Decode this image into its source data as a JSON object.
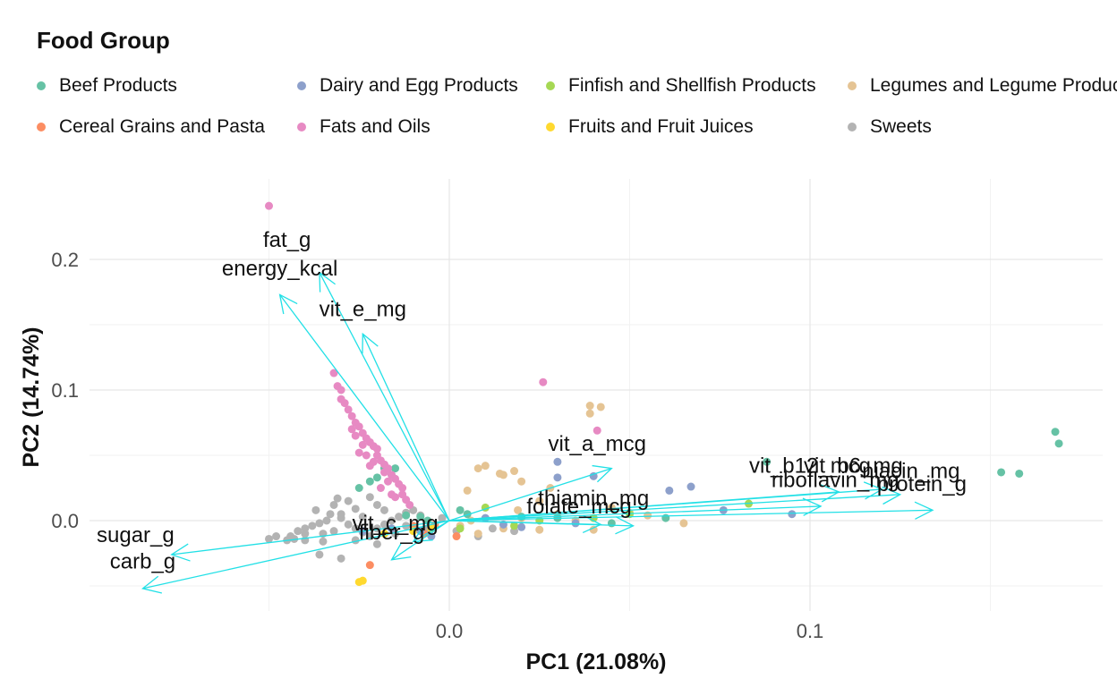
{
  "chart_data": {
    "type": "scatter",
    "subtype": "pca-biplot",
    "legend": {
      "title": "Food Group",
      "placement": "top",
      "entries": [
        {
          "name": "Beef Products",
          "color": "#66c2a5"
        },
        {
          "name": "Dairy and Egg Products",
          "color": "#8da0cb"
        },
        {
          "name": "Finfish and Shellfish Products",
          "color": "#a6d854"
        },
        {
          "name": "Legumes and Legume Products",
          "color": "#e5c494"
        },
        {
          "name": "Cereal Grains and Pasta",
          "color": "#fc8d62"
        },
        {
          "name": "Fats and Oils",
          "color": "#e78ac3"
        },
        {
          "name": "Fruits and Fruit Juices",
          "color": "#ffd92f"
        },
        {
          "name": "Sweets",
          "color": "#b3b3b3"
        }
      ]
    },
    "xlabel": "PC1 (21.08%)",
    "ylabel": "PC2 (14.74%)",
    "xlim": [
      -0.1,
      0.18
    ],
    "ylim": [
      -0.068,
      0.25
    ],
    "xticks": [
      {
        "value": 0.0,
        "label": "0.0"
      },
      {
        "value": 0.1,
        "label": "0.1"
      }
    ],
    "yticks": [
      {
        "value": 0.0,
        "label": "0.0"
      },
      {
        "value": 0.1,
        "label": "0.1"
      },
      {
        "value": 0.2,
        "label": "0.2"
      }
    ],
    "grid": true,
    "arrow_color": "#22e0e6",
    "loadings": [
      {
        "name": "fat_g",
        "x": -0.036,
        "y": 0.19,
        "label_x": -0.045,
        "label_y": 0.215
      },
      {
        "name": "energy_kcal",
        "x": -0.047,
        "y": 0.173,
        "label_x": -0.047,
        "label_y": 0.193
      },
      {
        "name": "vit_e_mg",
        "x": -0.024,
        "y": 0.143,
        "label_x": -0.024,
        "label_y": 0.162
      },
      {
        "name": "vit_a_mcg",
        "x": 0.045,
        "y": 0.04,
        "label_x": 0.041,
        "label_y": 0.059
      },
      {
        "name": "vit_b12_mcg",
        "x": 0.108,
        "y": 0.022,
        "label_x": 0.1,
        "label_y": 0.042
      },
      {
        "name": "vit_b6_mg",
        "x": 0.12,
        "y": 0.024,
        "label_x": 0.112,
        "label_y": 0.042
      },
      {
        "name": "niacin_mg",
        "x": 0.125,
        "y": 0.02,
        "label_x": 0.128,
        "label_y": 0.038
      },
      {
        "name": "riboflavin_mg",
        "x": 0.103,
        "y": 0.011,
        "label_x": 0.107,
        "label_y": 0.031
      },
      {
        "name": "protein_g",
        "x": 0.134,
        "y": 0.008,
        "label_x": 0.131,
        "label_y": 0.028
      },
      {
        "name": "thiamin_mg",
        "x": 0.042,
        "y": -0.003,
        "label_x": 0.04,
        "label_y": 0.017
      },
      {
        "name": "folate_mcg",
        "x": 0.051,
        "y": -0.004,
        "label_x": 0.036,
        "label_y": 0.011
      },
      {
        "name": "vit_c_mg",
        "x": -0.01,
        "y": -0.016,
        "label_x": -0.015,
        "label_y": -0.002
      },
      {
        "name": "fiber_g",
        "x": -0.016,
        "y": -0.03,
        "label_x": -0.016,
        "label_y": -0.009
      },
      {
        "name": "sugar_g",
        "x": -0.077,
        "y": -0.026,
        "label_x": -0.087,
        "label_y": -0.011
      },
      {
        "name": "carb_g",
        "x": -0.085,
        "y": -0.052,
        "label_x": -0.085,
        "label_y": -0.031
      }
    ],
    "points": {
      "Beef Products": [
        [
          0.168,
          0.068
        ],
        [
          0.169,
          0.059
        ],
        [
          0.158,
          0.036
        ],
        [
          0.153,
          0.037
        ],
        [
          0.088,
          0.045
        ],
        [
          -0.008,
          0.003
        ],
        [
          -0.006,
          0.0
        ],
        [
          -0.016,
          0.035
        ],
        [
          -0.015,
          0.04
        ],
        [
          -0.018,
          0.04
        ],
        [
          -0.02,
          0.033
        ],
        [
          -0.022,
          0.03
        ],
        [
          -0.025,
          0.025
        ],
        [
          0.003,
          0.008
        ],
        [
          0.005,
          0.005
        ],
        [
          0.045,
          -0.002
        ],
        [
          0.03,
          0.002
        ],
        [
          0.06,
          0.002
        ],
        [
          0.02,
          0.003
        ],
        [
          -0.012,
          0.004
        ]
      ],
      "Dairy and Egg Products": [
        [
          0.061,
          0.023
        ],
        [
          0.067,
          0.026
        ],
        [
          0.04,
          0.034
        ],
        [
          0.03,
          0.045
        ],
        [
          0.03,
          0.033
        ],
        [
          0.076,
          0.008
        ],
        [
          0.095,
          0.005
        ],
        [
          0.02,
          -0.005
        ],
        [
          -0.005,
          -0.012
        ],
        [
          -0.016,
          -0.006
        ],
        [
          -0.024,
          -0.008
        ],
        [
          0.01,
          0.002
        ],
        [
          0.015,
          -0.003
        ],
        [
          -0.008,
          -0.008
        ],
        [
          0.035,
          -0.002
        ]
      ],
      "Finfish and Shellfish Products": [
        [
          0.083,
          0.013
        ],
        [
          0.05,
          0.005
        ],
        [
          0.04,
          0.002
        ],
        [
          0.018,
          -0.004
        ],
        [
          0.025,
          0.0
        ],
        [
          0.003,
          -0.006
        ],
        [
          0.01,
          0.01
        ]
      ],
      "Legumes and Legume Products": [
        [
          0.039,
          0.088
        ],
        [
          0.039,
          0.082
        ],
        [
          0.042,
          0.087
        ],
        [
          0.015,
          0.035
        ],
        [
          0.014,
          0.036
        ],
        [
          0.018,
          0.038
        ],
        [
          0.008,
          0.04
        ],
        [
          0.01,
          0.042
        ],
        [
          0.02,
          0.03
        ],
        [
          0.025,
          0.015
        ],
        [
          0.028,
          0.025
        ],
        [
          0.005,
          0.023
        ],
        [
          0.04,
          -0.007
        ],
        [
          0.03,
          0.005
        ],
        [
          0.035,
          0.0
        ],
        [
          0.05,
          0.006
        ],
        [
          0.055,
          0.004
        ],
        [
          0.025,
          -0.007
        ],
        [
          0.015,
          -0.006
        ],
        [
          0.006,
          0.0
        ],
        [
          0.003,
          -0.004
        ],
        [
          0.02,
          0.002
        ],
        [
          0.045,
          0.01
        ],
        [
          0.019,
          0.008
        ],
        [
          0.065,
          -0.002
        ],
        [
          0.008,
          -0.01
        ]
      ],
      "Cereal Grains and Pasta": [
        [
          -0.022,
          -0.034
        ],
        [
          -0.004,
          -0.003
        ],
        [
          -0.007,
          -0.01
        ],
        [
          0.002,
          -0.012
        ],
        [
          -0.01,
          -0.004
        ]
      ],
      "Fats and Oils": [
        [
          -0.05,
          0.241
        ],
        [
          0.026,
          0.106
        ],
        [
          0.041,
          0.069
        ],
        [
          -0.032,
          0.113
        ],
        [
          -0.031,
          0.103
        ],
        [
          -0.03,
          0.1
        ],
        [
          -0.03,
          0.093
        ],
        [
          -0.029,
          0.09
        ],
        [
          -0.028,
          0.085
        ],
        [
          -0.027,
          0.08
        ],
        [
          -0.026,
          0.075
        ],
        [
          -0.025,
          0.072
        ],
        [
          -0.024,
          0.067
        ],
        [
          -0.026,
          0.065
        ],
        [
          -0.023,
          0.063
        ],
        [
          -0.022,
          0.06
        ],
        [
          -0.021,
          0.057
        ],
        [
          -0.024,
          0.058
        ],
        [
          -0.02,
          0.055
        ],
        [
          -0.02,
          0.05
        ],
        [
          -0.019,
          0.046
        ],
        [
          -0.023,
          0.05
        ],
        [
          -0.018,
          0.043
        ],
        [
          -0.017,
          0.04
        ],
        [
          -0.018,
          0.037
        ],
        [
          -0.016,
          0.035
        ],
        [
          -0.015,
          0.032
        ],
        [
          -0.017,
          0.03
        ],
        [
          -0.014,
          0.028
        ],
        [
          -0.013,
          0.025
        ],
        [
          -0.021,
          0.045
        ],
        [
          -0.025,
          0.052
        ],
        [
          -0.013,
          0.02
        ],
        [
          -0.012,
          0.016
        ],
        [
          -0.016,
          0.02
        ],
        [
          -0.011,
          0.012
        ],
        [
          -0.027,
          0.07
        ],
        [
          -0.022,
          0.042
        ],
        [
          -0.019,
          0.025
        ],
        [
          -0.015,
          0.018
        ]
      ],
      "Fruits and Fruit Juices": [
        [
          -0.025,
          -0.047
        ],
        [
          -0.024,
          -0.046
        ],
        [
          -0.01,
          -0.008
        ],
        [
          -0.005,
          -0.006
        ],
        [
          -0.018,
          -0.01
        ]
      ],
      "Sweets": [
        [
          -0.03,
          -0.029
        ],
        [
          -0.036,
          -0.026
        ],
        [
          -0.04,
          -0.015
        ],
        [
          -0.043,
          -0.014
        ],
        [
          -0.044,
          -0.012
        ],
        [
          -0.045,
          -0.015
        ],
        [
          -0.04,
          -0.006
        ],
        [
          -0.035,
          -0.01
        ],
        [
          -0.032,
          -0.008
        ],
        [
          -0.038,
          -0.004
        ],
        [
          -0.036,
          -0.002
        ],
        [
          -0.034,
          0.0
        ],
        [
          -0.03,
          0.002
        ],
        [
          -0.028,
          -0.003
        ],
        [
          -0.026,
          -0.006
        ],
        [
          -0.024,
          -0.009
        ],
        [
          -0.022,
          -0.012
        ],
        [
          -0.02,
          -0.006
        ],
        [
          -0.018,
          -0.003
        ],
        [
          -0.016,
          0.0
        ],
        [
          -0.014,
          0.003
        ],
        [
          -0.012,
          0.006
        ],
        [
          -0.01,
          0.008
        ],
        [
          -0.03,
          0.005
        ],
        [
          -0.032,
          0.012
        ],
        [
          -0.028,
          0.015
        ],
        [
          -0.031,
          0.017
        ],
        [
          -0.022,
          0.018
        ],
        [
          -0.02,
          0.012
        ],
        [
          -0.018,
          0.008
        ],
        [
          -0.024,
          0.003
        ],
        [
          -0.026,
          0.009
        ],
        [
          -0.04,
          -0.01
        ],
        [
          -0.042,
          -0.008
        ],
        [
          -0.05,
          -0.014
        ],
        [
          -0.048,
          -0.012
        ],
        [
          -0.026,
          -0.015
        ],
        [
          -0.02,
          -0.018
        ],
        [
          -0.035,
          -0.016
        ],
        [
          -0.015,
          -0.01
        ],
        [
          -0.012,
          -0.004
        ],
        [
          -0.008,
          0.004
        ],
        [
          -0.006,
          -0.006
        ],
        [
          0.002,
          -0.008
        ],
        [
          0.008,
          -0.012
        ],
        [
          0.012,
          -0.006
        ],
        [
          0.018,
          -0.008
        ],
        [
          -0.002,
          0.002
        ],
        [
          -0.033,
          0.005
        ],
        [
          -0.037,
          0.008
        ]
      ]
    }
  }
}
